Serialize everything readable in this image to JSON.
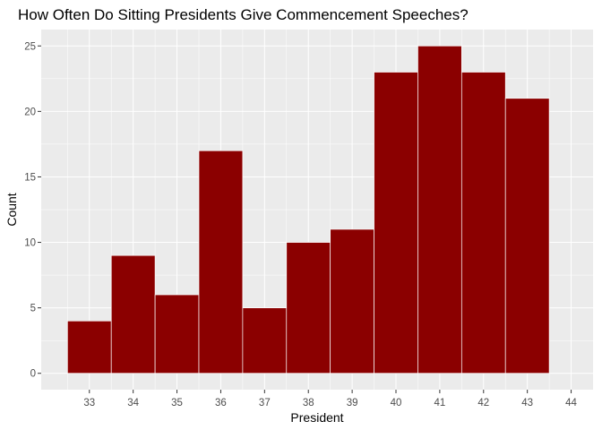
{
  "chart_data": {
    "type": "bar",
    "title": "How Often Do Sitting Presidents Give Commencement Speeches?",
    "xlabel": "President",
    "ylabel": "Count",
    "x_ticks": [
      "33",
      "34",
      "35",
      "36",
      "37",
      "38",
      "39",
      "40",
      "41",
      "42",
      "43",
      "44"
    ],
    "y_ticks": [
      "0",
      "5",
      "10",
      "15",
      "20",
      "25"
    ],
    "bins": [
      {
        "start": 32.5,
        "end": 33.5,
        "count": 4
      },
      {
        "start": 33.5,
        "end": 34.5,
        "count": 9
      },
      {
        "start": 34.5,
        "end": 35.5,
        "count": 6
      },
      {
        "start": 35.5,
        "end": 36.5,
        "count": 17
      },
      {
        "start": 36.5,
        "end": 37.5,
        "count": 5
      },
      {
        "start": 37.5,
        "end": 38.5,
        "count": 10
      },
      {
        "start": 38.5,
        "end": 39.5,
        "count": 11
      },
      {
        "start": 39.5,
        "end": 40.5,
        "count": 23
      },
      {
        "start": 40.5,
        "end": 41.5,
        "count": 25
      },
      {
        "start": 41.5,
        "end": 42.5,
        "count": 23
      },
      {
        "start": 42.5,
        "end": 43.5,
        "count": 21
      }
    ],
    "xlim": [
      31.9,
      44.5
    ],
    "ylim": [
      -1.25,
      26.25
    ],
    "grid": true,
    "colors": {
      "bar_fill": "#8B0000",
      "bar_outline": "#FFFFFF",
      "panel_background": "#EBEBEB",
      "grid_major": "#FFFFFF",
      "text": "#4D4D4D"
    }
  }
}
